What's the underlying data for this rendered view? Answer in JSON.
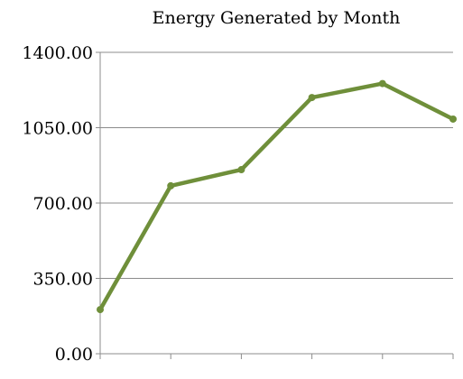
{
  "chart_data": {
    "type": "line",
    "title": "Energy Generated by Month",
    "xlabel": "",
    "ylabel": "",
    "categories": [
      "",
      "",
      "",
      "",
      "",
      ""
    ],
    "series": [
      {
        "values": [
          205,
          780,
          855,
          1190,
          1255,
          1090
        ],
        "color": "#6f8f3a"
      }
    ],
    "ylim": [
      0,
      1400
    ],
    "yticks": [
      0,
      350,
      700,
      1050,
      1400
    ],
    "ytick_labels": [
      "0.00",
      "350.00",
      "700.00",
      "1050.00",
      "1400.00"
    ],
    "grid": true,
    "legend": "none"
  }
}
